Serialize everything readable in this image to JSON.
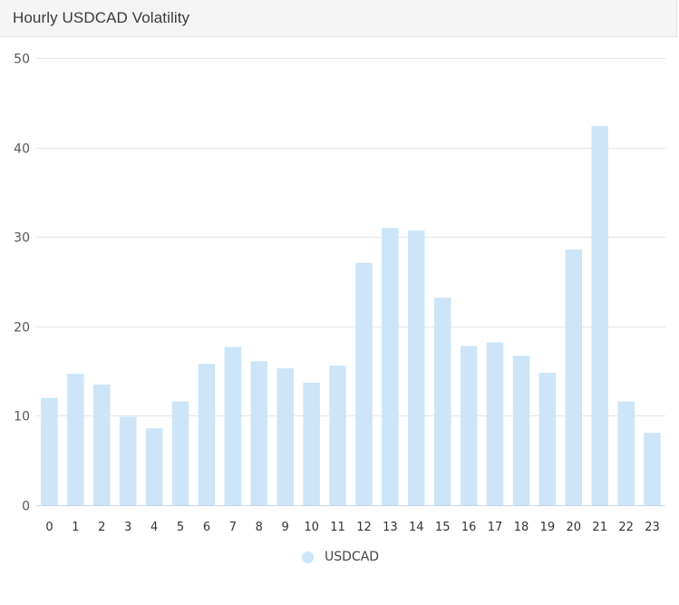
{
  "panel": {
    "title": "Hourly USDCAD Volatility"
  },
  "colors": {
    "bar": "#cce5f8",
    "grid": "#e6e6e6",
    "axis": "#ccd6eb",
    "header_bg": "#f5f5f5"
  },
  "chart_data": {
    "type": "bar",
    "title": "Hourly USDCAD Volatility",
    "xlabel": "",
    "ylabel": "",
    "categories": [
      "0",
      "1",
      "2",
      "3",
      "4",
      "5",
      "6",
      "7",
      "8",
      "9",
      "10",
      "11",
      "12",
      "13",
      "14",
      "15",
      "16",
      "17",
      "18",
      "19",
      "20",
      "21",
      "22",
      "23"
    ],
    "series": [
      {
        "name": "USDCAD",
        "values": [
          12.0,
          14.7,
          13.5,
          9.9,
          8.6,
          11.6,
          15.8,
          17.7,
          16.1,
          15.3,
          13.7,
          15.6,
          27.1,
          31.0,
          30.7,
          23.2,
          17.8,
          18.2,
          16.7,
          14.8,
          28.6,
          42.4,
          11.6,
          8.1
        ]
      }
    ],
    "ylim": [
      0,
      50
    ],
    "yticks": [
      0,
      10,
      20,
      30,
      40,
      50
    ],
    "grid": true,
    "legend_position": "bottom-center"
  },
  "legend": {
    "items": [
      {
        "label": "USDCAD",
        "color": "#cce5f8"
      }
    ]
  }
}
